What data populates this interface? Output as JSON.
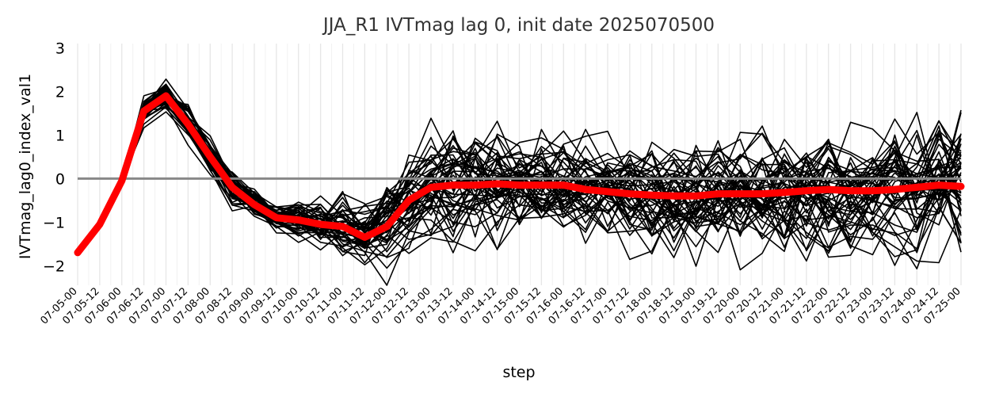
{
  "chart_data": {
    "type": "line",
    "title": "JJA_R1 IVTmag lag 0, init date 2025070500",
    "xlabel": "step",
    "ylabel": "IVTmag_lag0_index_val1",
    "categories": [
      "07-05-00",
      "07-05-12",
      "07-06-00",
      "07-06-12",
      "07-07-00",
      "07-07-12",
      "07-08-00",
      "07-08-12",
      "07-09-00",
      "07-09-12",
      "07-10-00",
      "07-10-12",
      "07-11-00",
      "07-11-12",
      "07-12-00",
      "07-12-12",
      "07-13-00",
      "07-13-12",
      "07-14-00",
      "07-14-12",
      "07-15-00",
      "07-15-12",
      "07-16-00",
      "07-16-12",
      "07-17-00",
      "07-17-12",
      "07-18-00",
      "07-18-12",
      "07-19-00",
      "07-19-12",
      "07-20-00",
      "07-20-12",
      "07-21-00",
      "07-21-12",
      "07-22-00",
      "07-22-12",
      "07-23-00",
      "07-23-12",
      "07-24-00",
      "07-24-12",
      "07-25-00"
    ],
    "ylim": [
      -2.45,
      3.1
    ],
    "yticks": [
      -2,
      -1,
      0,
      1,
      2,
      3
    ],
    "grid": "vertical",
    "reference_line": {
      "y": 0,
      "color": "#888888"
    },
    "ensemble_mean": {
      "color": "#ff0000",
      "values": [
        -1.7,
        -1.05,
        -0.05,
        1.55,
        1.9,
        1.25,
        0.5,
        -0.2,
        -0.6,
        -0.9,
        -0.95,
        -1.05,
        -1.1,
        -1.35,
        -1.1,
        -0.5,
        -0.2,
        -0.15,
        -0.15,
        -0.12,
        -0.15,
        -0.15,
        -0.15,
        -0.25,
        -0.3,
        -0.35,
        -0.38,
        -0.4,
        -0.4,
        -0.35,
        -0.35,
        -0.35,
        -0.32,
        -0.28,
        -0.25,
        -0.28,
        -0.28,
        -0.25,
        -0.2,
        -0.15,
        -0.18
      ]
    },
    "ensemble": {
      "members": 50,
      "color": "#000000",
      "spread": [
        0,
        0,
        0,
        0.15,
        0.2,
        0.2,
        0.25,
        0.22,
        0.18,
        0.16,
        0.22,
        0.3,
        0.35,
        0.4,
        0.5,
        0.6,
        0.65,
        0.68,
        0.7,
        0.68,
        0.62,
        0.6,
        0.58,
        0.58,
        0.58,
        0.6,
        0.62,
        0.62,
        0.64,
        0.66,
        0.68,
        0.68,
        0.68,
        0.7,
        0.72,
        0.72,
        0.74,
        0.75,
        0.78,
        0.8,
        0.8
      ]
    }
  }
}
